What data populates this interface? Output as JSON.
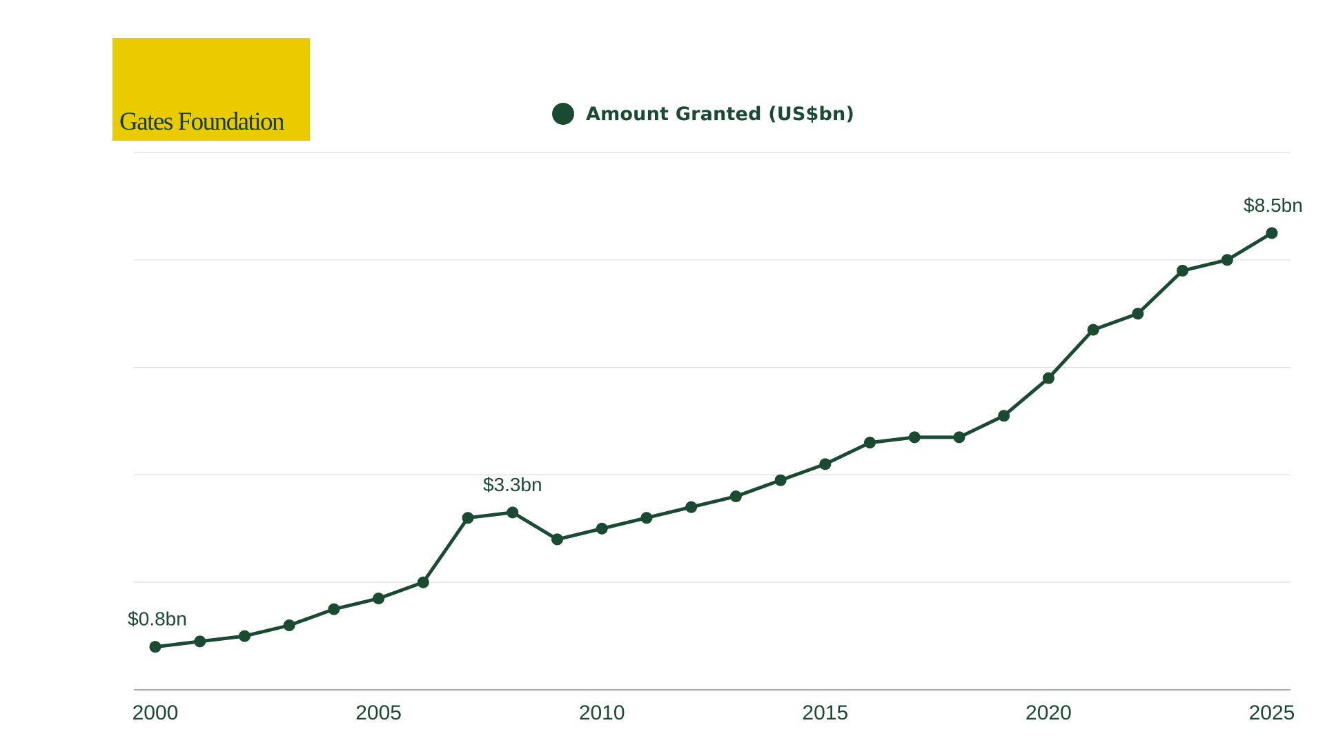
{
  "logo": {
    "text": "Gates Foundation"
  },
  "colors": {
    "brand_yellow": "#E8CC00",
    "series_green": "#1B4A32",
    "grid": "#DDDDDD",
    "axis": "#AAAAAA"
  },
  "chart_data": {
    "type": "line",
    "title": "",
    "xlabel": "",
    "ylabel": "",
    "x": [
      2000,
      2001,
      2002,
      2003,
      2004,
      2005,
      2006,
      2007,
      2008,
      2009,
      2010,
      2011,
      2012,
      2013,
      2014,
      2015,
      2016,
      2017,
      2018,
      2019,
      2020,
      2021,
      2022,
      2023,
      2024,
      2025
    ],
    "series": [
      {
        "name": "Amount Granted (US$bn)",
        "color": "#1B4A32",
        "values": [
          0.8,
          0.9,
          1.0,
          1.2,
          1.5,
          1.7,
          2.0,
          3.2,
          3.3,
          2.8,
          3.0,
          3.2,
          3.4,
          3.6,
          3.9,
          4.2,
          4.6,
          4.7,
          4.7,
          5.1,
          5.8,
          6.7,
          7.0,
          7.8,
          8.0,
          8.5
        ]
      }
    ],
    "xlim": [
      2000,
      2025
    ],
    "ylim": [
      0,
      10
    ],
    "x_ticks": [
      2000,
      2005,
      2010,
      2015,
      2020,
      2025
    ],
    "y_gridlines": [
      0,
      2,
      4,
      6,
      8,
      10
    ],
    "y_tick_labels_shown": false,
    "grid": "horizontal",
    "legend": "top-center",
    "annotations": [
      {
        "x": 2000,
        "text": "$0.8bn"
      },
      {
        "x": 2008,
        "text": "$3.3bn"
      },
      {
        "x": 2025,
        "text": "$8.5bn"
      }
    ]
  }
}
